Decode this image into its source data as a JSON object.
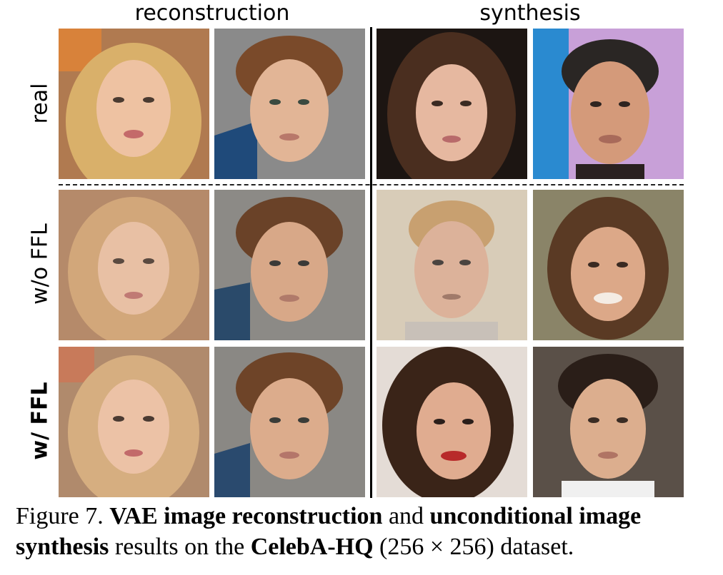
{
  "headers": {
    "reconstruction": "reconstruction",
    "synthesis": "synthesis"
  },
  "row_labels": {
    "real": "real",
    "wo_ffl": "w/o FFL",
    "w_ffl": "w/ FFL"
  },
  "caption": {
    "figure_label": "Figure 7.",
    "bold_1": "VAE image reconstruction",
    "text_1": "and",
    "bold_2": "unconditional image synthesis",
    "text_2": "results on the",
    "bold_3": "CelebA-HQ",
    "text_3": "(256 × 256) dataset."
  },
  "colors": {
    "separator": "#000000",
    "background": "#ffffff"
  }
}
